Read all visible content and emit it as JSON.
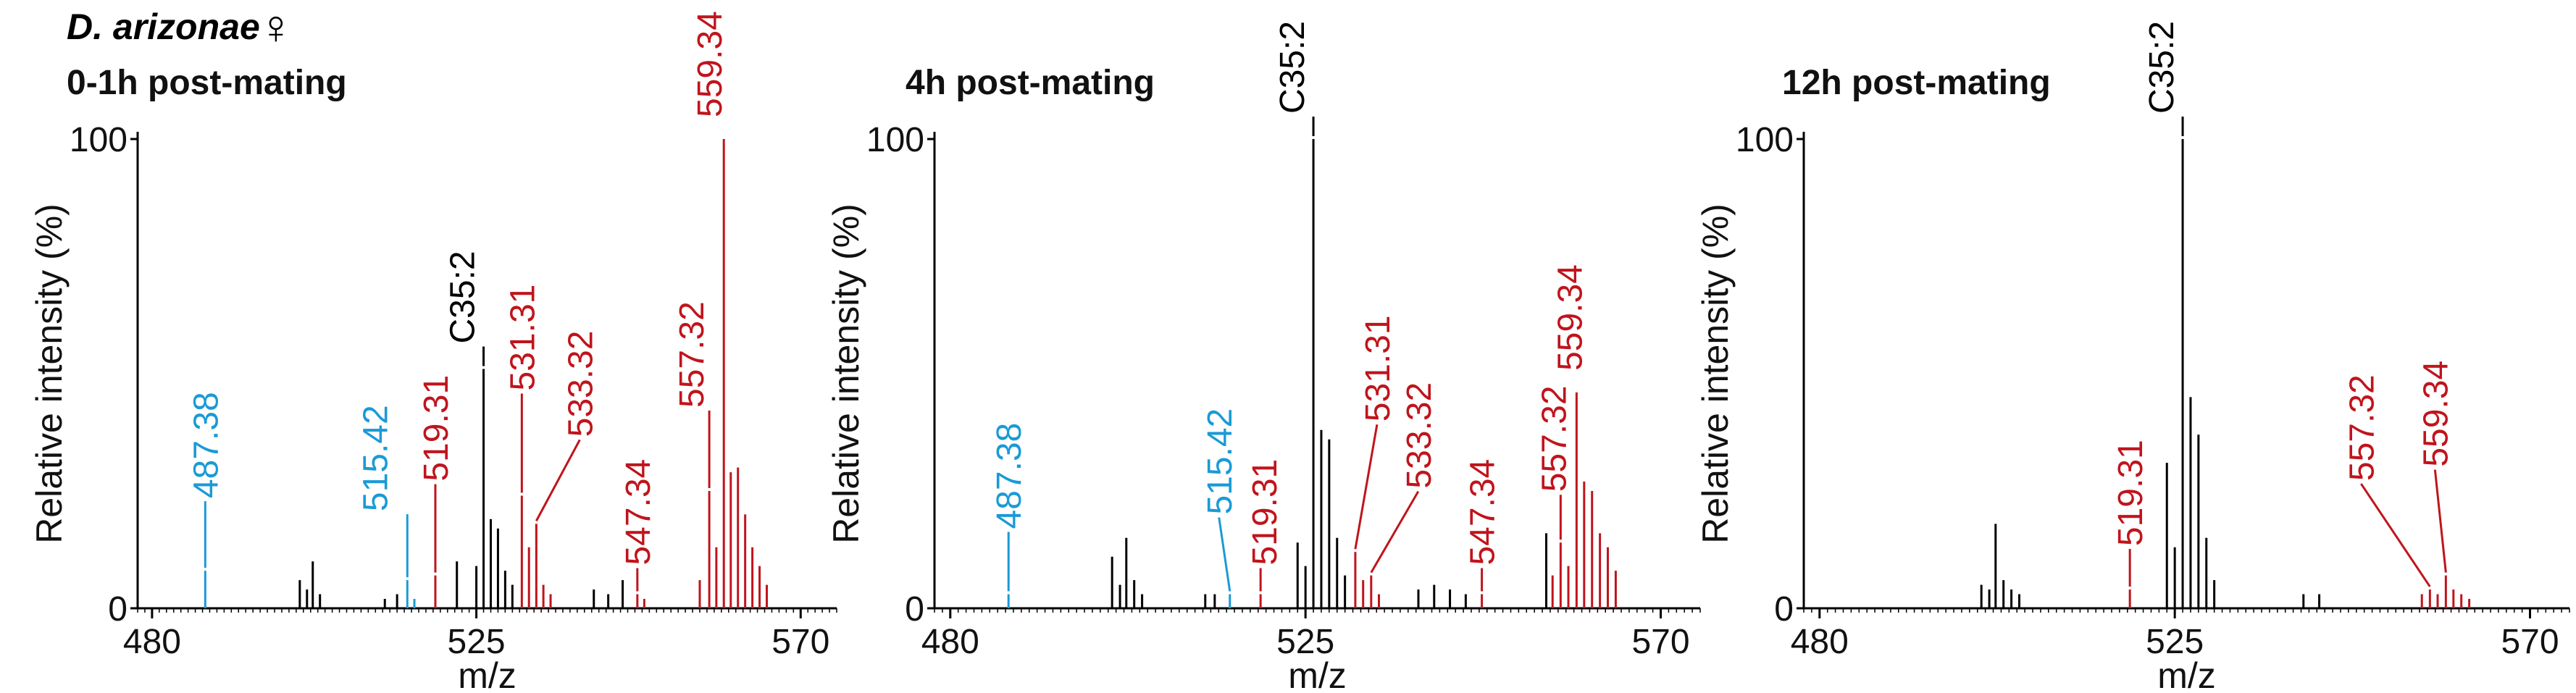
{
  "figure": {
    "species": "D. arizonae",
    "sex_symbol": "♀"
  },
  "colors": {
    "black": "#000000",
    "blue": "#1a9ad6",
    "red": "#c0141c"
  },
  "chart_data": [
    {
      "type": "bar",
      "title": "0-1h post-mating",
      "xlabel": "m/z",
      "ylabel": "Relative intensity (%)",
      "xlim": [
        478,
        575
      ],
      "ylim": [
        0,
        100
      ],
      "xticks": [
        480,
        525,
        570
      ],
      "yticks": [
        0,
        100
      ],
      "peaks": [
        {
          "mz": 487.38,
          "rel": 8,
          "color": "blue",
          "label": "487.38"
        },
        {
          "mz": 500.5,
          "rel": 6,
          "color": "black"
        },
        {
          "mz": 501.5,
          "rel": 4,
          "color": "black"
        },
        {
          "mz": 502.3,
          "rel": 10,
          "color": "black"
        },
        {
          "mz": 503.3,
          "rel": 3,
          "color": "black"
        },
        {
          "mz": 512.3,
          "rel": 2,
          "color": "black"
        },
        {
          "mz": 514.0,
          "rel": 3,
          "color": "black"
        },
        {
          "mz": 515.42,
          "rel": 6,
          "color": "blue",
          "label": "515.42"
        },
        {
          "mz": 516.4,
          "rel": 2,
          "color": "blue"
        },
        {
          "mz": 519.31,
          "rel": 7,
          "color": "red",
          "label": "519.31"
        },
        {
          "mz": 522.3,
          "rel": 10,
          "color": "black"
        },
        {
          "mz": 525.0,
          "rel": 9,
          "color": "black"
        },
        {
          "mz": 526.0,
          "rel": 51,
          "color": "black",
          "label": "C35:2"
        },
        {
          "mz": 527.0,
          "rel": 19,
          "color": "black"
        },
        {
          "mz": 528.0,
          "rel": 17,
          "color": "black"
        },
        {
          "mz": 529.0,
          "rel": 8,
          "color": "black"
        },
        {
          "mz": 530.0,
          "rel": 5,
          "color": "black"
        },
        {
          "mz": 531.31,
          "rel": 24,
          "color": "red",
          "label": "531.31"
        },
        {
          "mz": 532.3,
          "rel": 13,
          "color": "red"
        },
        {
          "mz": 533.32,
          "rel": 18,
          "color": "red",
          "label": "533.32"
        },
        {
          "mz": 534.3,
          "rel": 5,
          "color": "red"
        },
        {
          "mz": 535.3,
          "rel": 3,
          "color": "red"
        },
        {
          "mz": 541.3,
          "rel": 4,
          "color": "black"
        },
        {
          "mz": 543.3,
          "rel": 3,
          "color": "black"
        },
        {
          "mz": 545.3,
          "rel": 6,
          "color": "black"
        },
        {
          "mz": 547.34,
          "rel": 3,
          "color": "red",
          "label": "547.34"
        },
        {
          "mz": 548.3,
          "rel": 2,
          "color": "red"
        },
        {
          "mz": 556.0,
          "rel": 6,
          "color": "red"
        },
        {
          "mz": 557.32,
          "rel": 25,
          "color": "red",
          "label": "557.32"
        },
        {
          "mz": 558.3,
          "rel": 13,
          "color": "red"
        },
        {
          "mz": 559.34,
          "rel": 100,
          "color": "red",
          "label": "559.34"
        },
        {
          "mz": 560.3,
          "rel": 29,
          "color": "red"
        },
        {
          "mz": 561.3,
          "rel": 30,
          "color": "red"
        },
        {
          "mz": 562.3,
          "rel": 20,
          "color": "red"
        },
        {
          "mz": 563.3,
          "rel": 13,
          "color": "red"
        },
        {
          "mz": 564.3,
          "rel": 9,
          "color": "red"
        },
        {
          "mz": 565.3,
          "rel": 5,
          "color": "red"
        }
      ]
    },
    {
      "type": "bar",
      "title": "4h post-mating",
      "xlabel": "m/z",
      "ylabel": "Relative intensity (%)",
      "xlim": [
        478,
        575
      ],
      "ylim": [
        0,
        100
      ],
      "xticks": [
        480,
        525,
        570
      ],
      "yticks": [
        0,
        100
      ],
      "peaks": [
        {
          "mz": 487.38,
          "rel": 3,
          "color": "blue",
          "label": "487.38"
        },
        {
          "mz": 500.5,
          "rel": 11,
          "color": "black"
        },
        {
          "mz": 501.5,
          "rel": 5,
          "color": "black"
        },
        {
          "mz": 502.3,
          "rel": 15,
          "color": "black"
        },
        {
          "mz": 503.3,
          "rel": 6,
          "color": "black"
        },
        {
          "mz": 504.3,
          "rel": 3,
          "color": "black"
        },
        {
          "mz": 512.3,
          "rel": 3,
          "color": "black"
        },
        {
          "mz": 513.5,
          "rel": 3,
          "color": "black"
        },
        {
          "mz": 515.42,
          "rel": 3,
          "color": "blue",
          "label": "515.42"
        },
        {
          "mz": 519.31,
          "rel": 3,
          "color": "red",
          "label": "519.31"
        },
        {
          "mz": 524.0,
          "rel": 14,
          "color": "black"
        },
        {
          "mz": 525.0,
          "rel": 9,
          "color": "black"
        },
        {
          "mz": 526.0,
          "rel": 100,
          "color": "black",
          "label": "C35:2"
        },
        {
          "mz": 527.0,
          "rel": 38,
          "color": "black"
        },
        {
          "mz": 528.0,
          "rel": 36,
          "color": "black"
        },
        {
          "mz": 529.0,
          "rel": 15,
          "color": "black"
        },
        {
          "mz": 530.0,
          "rel": 7,
          "color": "black"
        },
        {
          "mz": 531.31,
          "rel": 12,
          "color": "red",
          "label": "531.31"
        },
        {
          "mz": 532.3,
          "rel": 6,
          "color": "red"
        },
        {
          "mz": 533.32,
          "rel": 7,
          "color": "red",
          "label": "533.32"
        },
        {
          "mz": 534.3,
          "rel": 3,
          "color": "red"
        },
        {
          "mz": 539.3,
          "rel": 4,
          "color": "black"
        },
        {
          "mz": 541.3,
          "rel": 5,
          "color": "black"
        },
        {
          "mz": 543.3,
          "rel": 4,
          "color": "black"
        },
        {
          "mz": 545.3,
          "rel": 3,
          "color": "black"
        },
        {
          "mz": 547.34,
          "rel": 3,
          "color": "red",
          "label": "547.34"
        },
        {
          "mz": 555.5,
          "rel": 16,
          "color": "black"
        },
        {
          "mz": 556.3,
          "rel": 7,
          "color": "red"
        },
        {
          "mz": 557.32,
          "rel": 14,
          "color": "red",
          "label": "557.32"
        },
        {
          "mz": 558.3,
          "rel": 9,
          "color": "red"
        },
        {
          "mz": 559.34,
          "rel": 46,
          "color": "red",
          "label": "559.34"
        },
        {
          "mz": 560.3,
          "rel": 27,
          "color": "red"
        },
        {
          "mz": 561.3,
          "rel": 25,
          "color": "red"
        },
        {
          "mz": 562.3,
          "rel": 16,
          "color": "red"
        },
        {
          "mz": 563.3,
          "rel": 13,
          "color": "red"
        },
        {
          "mz": 564.3,
          "rel": 8,
          "color": "red"
        }
      ]
    },
    {
      "type": "bar",
      "title": "12h post-mating",
      "xlabel": "m/z",
      "ylabel": "Relative intensity (%)",
      "xlim": [
        478,
        575
      ],
      "ylim": [
        0,
        100
      ],
      "xticks": [
        480,
        525,
        570
      ],
      "yticks": [
        0,
        100
      ],
      "peaks": [
        {
          "mz": 500.5,
          "rel": 5,
          "color": "black"
        },
        {
          "mz": 501.5,
          "rel": 4,
          "color": "black"
        },
        {
          "mz": 502.3,
          "rel": 18,
          "color": "black"
        },
        {
          "mz": 503.3,
          "rel": 6,
          "color": "black"
        },
        {
          "mz": 504.3,
          "rel": 4,
          "color": "black"
        },
        {
          "mz": 505.3,
          "rel": 3,
          "color": "black"
        },
        {
          "mz": 519.31,
          "rel": 4,
          "color": "red",
          "label": "519.31"
        },
        {
          "mz": 524.0,
          "rel": 31,
          "color": "black"
        },
        {
          "mz": 525.0,
          "rel": 13,
          "color": "black"
        },
        {
          "mz": 526.0,
          "rel": 100,
          "color": "black",
          "label": "C35:2"
        },
        {
          "mz": 527.0,
          "rel": 45,
          "color": "black"
        },
        {
          "mz": 528.0,
          "rel": 37,
          "color": "black"
        },
        {
          "mz": 529.0,
          "rel": 15,
          "color": "black"
        },
        {
          "mz": 530.0,
          "rel": 6,
          "color": "black"
        },
        {
          "mz": 541.3,
          "rel": 3,
          "color": "black"
        },
        {
          "mz": 543.3,
          "rel": 3,
          "color": "black"
        },
        {
          "mz": 556.3,
          "rel": 3,
          "color": "red"
        },
        {
          "mz": 557.32,
          "rel": 4,
          "color": "red",
          "label": "557.32"
        },
        {
          "mz": 558.3,
          "rel": 3,
          "color": "red"
        },
        {
          "mz": 559.34,
          "rel": 7,
          "color": "red",
          "label": "559.34"
        },
        {
          "mz": 560.3,
          "rel": 4,
          "color": "red"
        },
        {
          "mz": 561.3,
          "rel": 3,
          "color": "red"
        },
        {
          "mz": 562.3,
          "rel": 2,
          "color": "red"
        }
      ]
    }
  ]
}
